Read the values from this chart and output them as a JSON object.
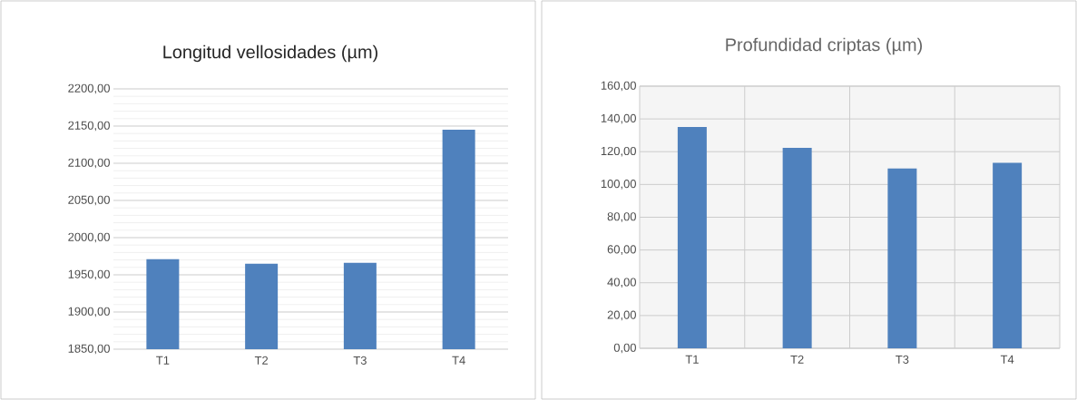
{
  "chart_data": [
    {
      "type": "bar",
      "title": "Longitud vellosidades (µm)",
      "categories": [
        "T1",
        "T2",
        "T3",
        "T4"
      ],
      "values": [
        1971,
        1965,
        1966,
        2145
      ],
      "color": "#4f81bd",
      "ylim": [
        1850,
        2200
      ],
      "yticks": [
        {
          "value": 1850,
          "label": "1850,00"
        },
        {
          "value": 1900,
          "label": "1900,00"
        },
        {
          "value": 1950,
          "label": "1950,00"
        },
        {
          "value": 2000,
          "label": "2000,00"
        },
        {
          "value": 2050,
          "label": "2050,00"
        },
        {
          "value": 2100,
          "label": "2100,00"
        },
        {
          "value": 2150,
          "label": "2150,00"
        },
        {
          "value": 2200,
          "label": "2200,00"
        }
      ],
      "grid": "y"
    },
    {
      "type": "bar",
      "title": "Profundidad criptas (µm)",
      "categories": [
        "T1",
        "T2",
        "T3",
        "T4"
      ],
      "values": [
        135.1,
        122.4,
        109.7,
        113.2
      ],
      "color": "#4f81bd",
      "ylim": [
        0,
        160
      ],
      "yticks": [
        {
          "value": 0,
          "label": "0,00"
        },
        {
          "value": 20,
          "label": "20,00"
        },
        {
          "value": 40,
          "label": "40,00"
        },
        {
          "value": 60,
          "label": "60,00"
        },
        {
          "value": 80,
          "label": "80,00"
        },
        {
          "value": 100,
          "label": "100,00"
        },
        {
          "value": 120,
          "label": "120,00"
        },
        {
          "value": 140,
          "label": "140,00"
        },
        {
          "value": 160,
          "label": "160,00"
        }
      ],
      "grid": true
    }
  ]
}
